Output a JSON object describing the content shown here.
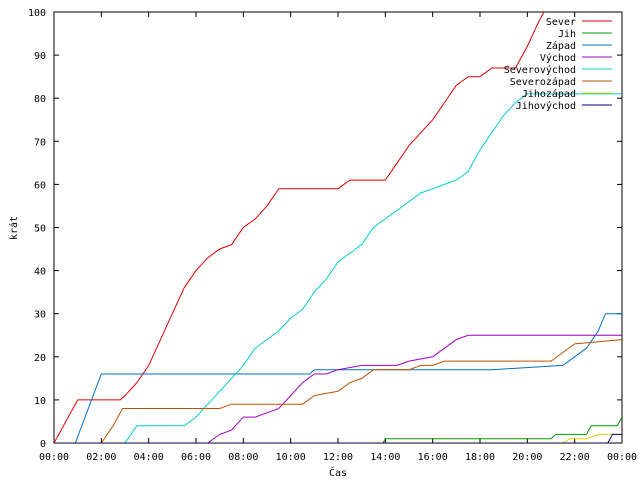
{
  "chart_data": {
    "type": "line",
    "title": "",
    "xlabel": "Čas",
    "ylabel": "krát",
    "xlim": [
      0,
      24
    ],
    "ylim": [
      0,
      100
    ],
    "x_ticks": [
      "00:00",
      "02:00",
      "04:00",
      "06:00",
      "08:00",
      "10:00",
      "12:00",
      "14:00",
      "16:00",
      "18:00",
      "20:00",
      "22:00",
      "00:00"
    ],
    "y_ticks": [
      "0",
      "10",
      "20",
      "30",
      "40",
      "50",
      "60",
      "70",
      "80",
      "90",
      "100"
    ],
    "grid": false,
    "legend_position": "top-right",
    "series": [
      {
        "name": "Sever",
        "color": "#e00000",
        "points": [
          [
            0,
            0
          ],
          [
            1,
            10
          ],
          [
            2.8,
            10
          ],
          [
            3,
            11
          ],
          [
            3.5,
            14
          ],
          [
            4,
            18
          ],
          [
            4.5,
            24
          ],
          [
            5,
            30
          ],
          [
            5.5,
            36
          ],
          [
            6,
            40
          ],
          [
            6.5,
            43
          ],
          [
            7,
            45
          ],
          [
            7.5,
            46
          ],
          [
            8,
            50
          ],
          [
            8.5,
            52
          ],
          [
            9,
            55
          ],
          [
            9.5,
            59
          ],
          [
            12,
            59
          ],
          [
            12.5,
            61
          ],
          [
            14,
            61
          ],
          [
            14.5,
            65
          ],
          [
            15,
            69
          ],
          [
            15.5,
            72
          ],
          [
            16,
            75
          ],
          [
            16.5,
            79
          ],
          [
            17,
            83
          ],
          [
            17.5,
            85
          ],
          [
            18,
            85
          ],
          [
            18.5,
            87
          ],
          [
            19.5,
            87
          ],
          [
            20,
            92
          ],
          [
            20.5,
            98
          ],
          [
            20.7,
            100
          ]
        ]
      },
      {
        "name": "Jih",
        "color": "#00a000",
        "points": [
          [
            0,
            0
          ],
          [
            13.9,
            0
          ],
          [
            14,
            1
          ],
          [
            21,
            1
          ],
          [
            21.2,
            2
          ],
          [
            22.5,
            2
          ],
          [
            22.7,
            4
          ],
          [
            23.8,
            4
          ],
          [
            24,
            6
          ]
        ]
      },
      {
        "name": "Západ",
        "color": "#0070c0",
        "points": [
          [
            0,
            0
          ],
          [
            0.9,
            0
          ],
          [
            2,
            16
          ],
          [
            10.8,
            16
          ],
          [
            11,
            17
          ],
          [
            18,
            17
          ],
          [
            18.5,
            17
          ],
          [
            21.5,
            18
          ],
          [
            22,
            20
          ],
          [
            22.5,
            22
          ],
          [
            23,
            26
          ],
          [
            23.3,
            30
          ],
          [
            24,
            30
          ]
        ]
      },
      {
        "name": "Východ",
        "color": "#a000c0",
        "points": [
          [
            0,
            0
          ],
          [
            6.5,
            0
          ],
          [
            7,
            2
          ],
          [
            7.5,
            3
          ],
          [
            8,
            6
          ],
          [
            8.5,
            6
          ],
          [
            9,
            7
          ],
          [
            9.5,
            8
          ],
          [
            10,
            11
          ],
          [
            10.5,
            14
          ],
          [
            11,
            16
          ],
          [
            11.5,
            16
          ],
          [
            12,
            17
          ],
          [
            13,
            18
          ],
          [
            14.5,
            18
          ],
          [
            15,
            19
          ],
          [
            16,
            20
          ],
          [
            16.5,
            22
          ],
          [
            17,
            24
          ],
          [
            17.5,
            25
          ],
          [
            24,
            25
          ]
        ]
      },
      {
        "name": "Severovýchod",
        "color": "#00d0d0",
        "points": [
          [
            0,
            0
          ],
          [
            3,
            0
          ],
          [
            3.5,
            4
          ],
          [
            5.5,
            4
          ],
          [
            6,
            6
          ],
          [
            6.5,
            9
          ],
          [
            7,
            12
          ],
          [
            7.5,
            15
          ],
          [
            8,
            18
          ],
          [
            8.5,
            22
          ],
          [
            9,
            24
          ],
          [
            9.5,
            26
          ],
          [
            10,
            29
          ],
          [
            10.5,
            31
          ],
          [
            11,
            35
          ],
          [
            11.5,
            38
          ],
          [
            12,
            42
          ],
          [
            12.5,
            44
          ],
          [
            13,
            46
          ],
          [
            13.5,
            50
          ],
          [
            14,
            52
          ],
          [
            14.5,
            54
          ],
          [
            15,
            56
          ],
          [
            15.5,
            58
          ],
          [
            16,
            59
          ],
          [
            16.5,
            60
          ],
          [
            17,
            61
          ],
          [
            17.5,
            63
          ],
          [
            18,
            68
          ],
          [
            18.5,
            72
          ],
          [
            19,
            76
          ],
          [
            19.5,
            79
          ],
          [
            20,
            81
          ],
          [
            24,
            81
          ]
        ]
      },
      {
        "name": "Severozápad",
        "color": "#c05000",
        "points": [
          [
            0,
            0
          ],
          [
            2,
            0
          ],
          [
            2.5,
            4
          ],
          [
            2.9,
            8
          ],
          [
            7,
            8
          ],
          [
            7.5,
            9
          ],
          [
            10.5,
            9
          ],
          [
            11,
            11
          ],
          [
            12,
            12
          ],
          [
            12.5,
            14
          ],
          [
            13,
            15
          ],
          [
            13.5,
            17
          ],
          [
            15,
            17
          ],
          [
            15.5,
            18
          ],
          [
            16,
            18
          ],
          [
            16.5,
            19
          ],
          [
            21,
            19
          ],
          [
            21.5,
            21
          ],
          [
            22,
            23
          ],
          [
            24,
            24
          ]
        ]
      },
      {
        "name": "Jihozápad",
        "color": "#e0d000",
        "points": [
          [
            0,
            0
          ],
          [
            21.5,
            0
          ],
          [
            21.8,
            1
          ],
          [
            22.5,
            1
          ],
          [
            23,
            2
          ],
          [
            24,
            2
          ]
        ]
      },
      {
        "name": "Jihovýchod",
        "color": "#000080",
        "points": [
          [
            0,
            0
          ],
          [
            23.4,
            0
          ],
          [
            23.6,
            2
          ],
          [
            24,
            2
          ]
        ]
      }
    ]
  }
}
